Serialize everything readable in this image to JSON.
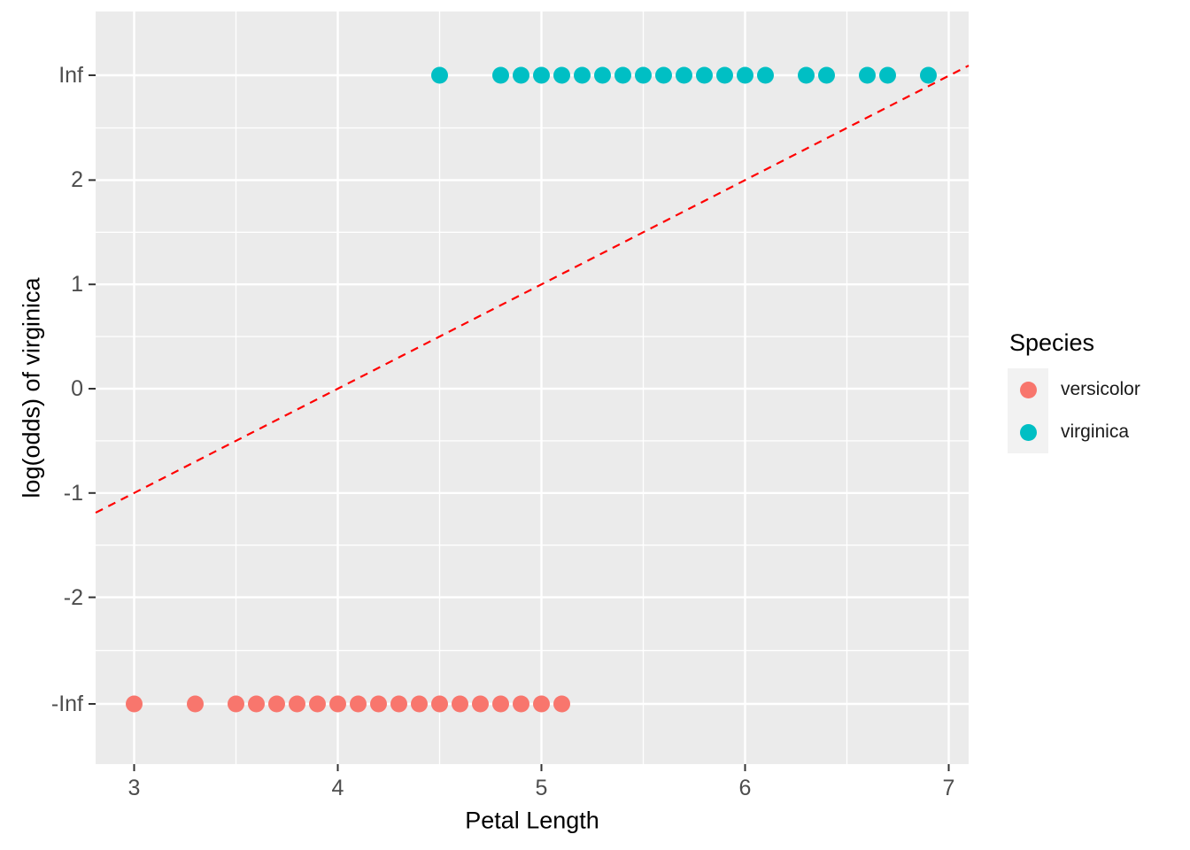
{
  "chart_data": {
    "type": "scatter",
    "title": "",
    "xlabel": "Petal Length",
    "ylabel": "log(odds) of virginica",
    "grid": true,
    "x_axis": {
      "range": [
        2.811,
        7.098
      ],
      "ticks": [
        {
          "label": "3",
          "value": 3
        },
        {
          "label": "4",
          "value": 4
        },
        {
          "label": "5",
          "value": 5
        },
        {
          "label": "6",
          "value": 6
        },
        {
          "label": "7",
          "value": 7
        }
      ],
      "minor_ticks": [
        3.5,
        4.5,
        5.5,
        6.5
      ]
    },
    "y_axis": {
      "range": [
        -3.6,
        3.62
      ],
      "ticks": [
        {
          "label": "Inf",
          "value": 3.005
        },
        {
          "label": "2",
          "value": 2
        },
        {
          "label": "1",
          "value": 1
        },
        {
          "label": "0",
          "value": 0
        },
        {
          "label": "-1",
          "value": -1
        },
        {
          "label": "-2",
          "value": -2
        },
        {
          "label": "-Inf",
          "value": -3.022
        }
      ],
      "minor_ticks": [
        2.5,
        1.5,
        0.5,
        -0.5,
        -1.5,
        -2.51
      ]
    },
    "series": [
      {
        "name": "versicolor",
        "color": "#F8766D",
        "y": "-Inf",
        "x": [
          3.0,
          3.3,
          3.5,
          3.6,
          3.7,
          3.8,
          3.9,
          4.0,
          4.1,
          4.2,
          4.3,
          4.4,
          4.5,
          4.6,
          4.7,
          4.8,
          4.9,
          5.0,
          5.1
        ]
      },
      {
        "name": "virginica",
        "color": "#00BFC4",
        "y": "Inf",
        "x": [
          4.5,
          4.8,
          4.9,
          5.0,
          5.1,
          5.2,
          5.3,
          5.4,
          5.5,
          5.6,
          5.7,
          5.8,
          5.9,
          6.0,
          6.1,
          6.3,
          6.4,
          6.6,
          6.7,
          6.9
        ]
      }
    ],
    "reference_line": {
      "slope": 1,
      "intercept": -4,
      "color": "#FF0000",
      "style": "dashed"
    },
    "legend": {
      "title": "Species",
      "position": "right",
      "entries": [
        {
          "label": "versicolor",
          "color": "#F8766D"
        },
        {
          "label": "virginica",
          "color": "#00BFC4"
        }
      ]
    },
    "colors": {
      "panel_background": "#EBEBEB",
      "gridline": "#FFFFFF",
      "axis_text": "#4D4D4D",
      "tick_mark": "#333333",
      "legend_key": "#F2F2F2",
      "axis_title": "#000000"
    }
  }
}
